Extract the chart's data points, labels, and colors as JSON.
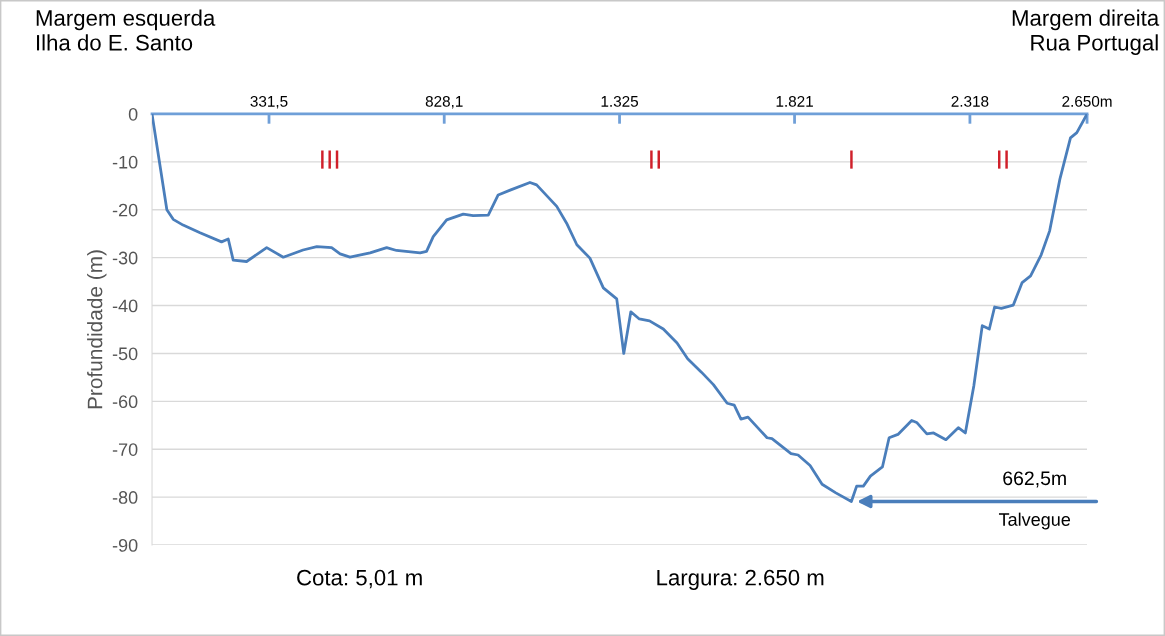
{
  "chart_data": {
    "type": "line",
    "ylabel": "Profundidade (m)",
    "x": [
      0,
      2,
      42,
      60,
      88,
      136,
      197,
      216,
      230,
      268,
      325,
      372,
      428,
      467,
      509,
      533,
      561,
      618,
      665,
      693,
      760,
      778,
      797,
      835,
      882,
      910,
      953,
      981,
      1015,
      1071,
      1090,
      1147,
      1175,
      1204,
      1241,
      1279,
      1317,
      1337,
      1357,
      1381,
      1410,
      1449,
      1488,
      1518,
      1557,
      1591,
      1630,
      1650,
      1669,
      1689,
      1743,
      1757,
      1811,
      1831,
      1865,
      1899,
      1938,
      1982,
      1997,
      2016,
      2036,
      2070,
      2089,
      2114,
      2153,
      2167,
      2196,
      2215,
      2250,
      2285,
      2305,
      2329,
      2353,
      2373,
      2388,
      2407,
      2441,
      2466,
      2490,
      2520,
      2544,
      2573,
      2603,
      2621,
      2650
    ],
    "series": [
      {
        "color": "#4a7ebb",
        "values": [
          0,
          -1,
          -20,
          -22,
          -23.2,
          -24.8,
          -26.7,
          -26.1,
          -30.5,
          -30.8,
          -27.9,
          -29.9,
          -28.4,
          -27.7,
          -27.9,
          -29.2,
          -29.9,
          -29,
          -27.9,
          -28.5,
          -29,
          -28.7,
          -25.6,
          -22.1,
          -20.9,
          -21.2,
          -21.1,
          -16.9,
          -15.9,
          -14.3,
          -14.8,
          -19.3,
          -22.8,
          -27.3,
          -30.1,
          -36.3,
          -38.6,
          -50,
          -41.3,
          -42.8,
          -43.2,
          -44.9,
          -47.8,
          -51.1,
          -53.9,
          -56.5,
          -60.4,
          -60.8,
          -63.7,
          -63.3,
          -67.6,
          -67.8,
          -70.9,
          -71.2,
          -73.4,
          -77.3,
          -79.1,
          -80.9,
          -77.7,
          -77.7,
          -75.6,
          -73.7,
          -67.6,
          -66.9,
          -64,
          -64.4,
          -66.8,
          -66.6,
          -68,
          -65.5,
          -66.6,
          -56.8,
          -44.2,
          -44.9,
          -40.3,
          -40.6,
          -39.9,
          -35.2,
          -33.8,
          -29.4,
          -24.4,
          -13.6,
          -5,
          -3.9,
          0
        ]
      }
    ],
    "xlim": [
      0,
      2650
    ],
    "xticks": [
      {
        "value": 331.5,
        "label": "331,5"
      },
      {
        "value": 828.1,
        "label": "828,1"
      },
      {
        "value": 1325,
        "label": "1.325"
      },
      {
        "value": 1821,
        "label": "1.821"
      },
      {
        "value": 2318,
        "label": "2.318"
      },
      {
        "value": 2650,
        "label": "2.650m"
      }
    ],
    "ylim": [
      -90,
      0
    ],
    "yticks": [
      0,
      -10,
      -20,
      -30,
      -40,
      -50,
      -60,
      -70,
      -80,
      -90
    ],
    "grid": "y",
    "marker": "none",
    "line_style": "solid",
    "annotations": [
      "Margem esquerda\nIlha do E. Santo",
      "Margem direita\nRua Portugal",
      "III",
      "II",
      "I",
      "II",
      "Talvegue",
      "662,5m",
      "Cota: 5,01 m",
      "Largura: 2.650 m"
    ]
  }
}
